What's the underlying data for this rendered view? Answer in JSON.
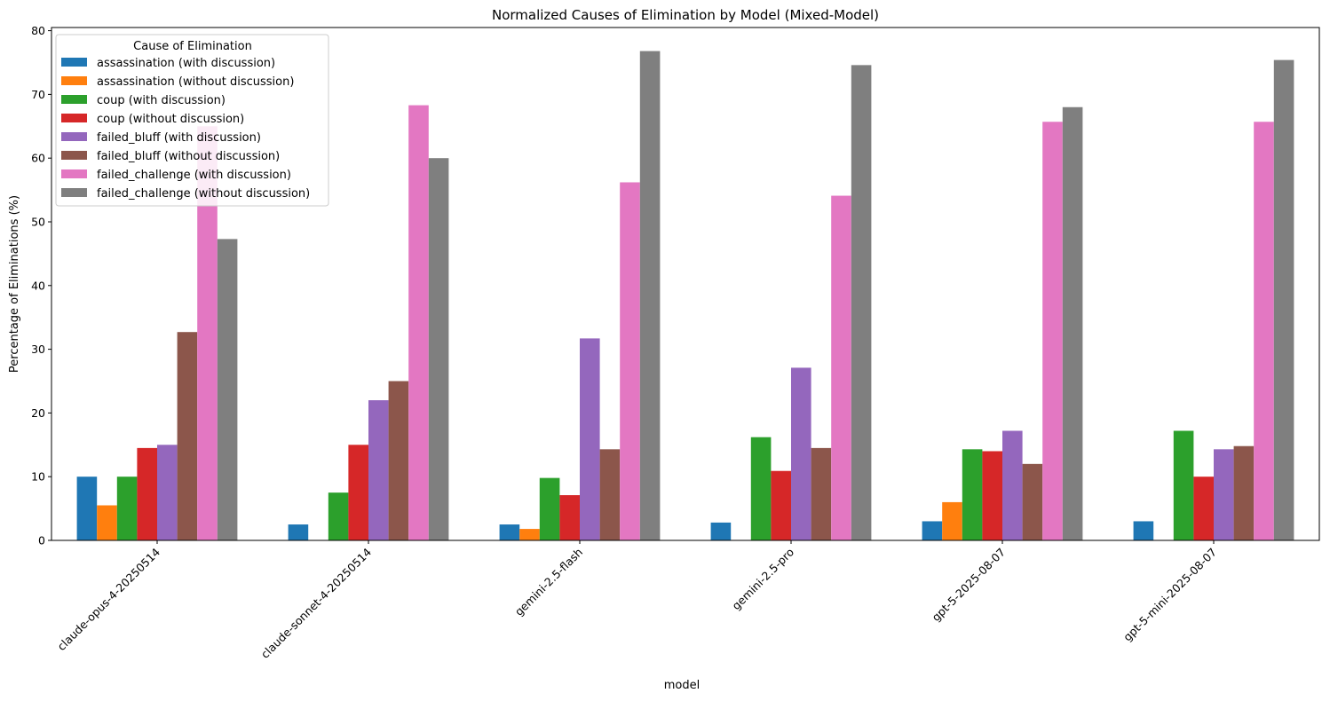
{
  "chart_data": {
    "type": "bar",
    "title": "Normalized Causes of Elimination by Model (Mixed-Model)",
    "xlabel": "model",
    "ylabel": "Percentage of Eliminations (%)",
    "ylim": [
      0,
      80.5
    ],
    "yticks": [
      0,
      10,
      20,
      30,
      40,
      50,
      60,
      70,
      80
    ],
    "grid": false,
    "legend": {
      "title": "Cause of Elimination",
      "placement": "upper-left"
    },
    "categories": [
      "claude-opus-4-20250514",
      "claude-sonnet-4-20250514",
      "gemini-2.5-flash",
      "gemini-2.5-pro",
      "gpt-5-2025-08-07",
      "gpt-5-mini-2025-08-07"
    ],
    "series": [
      {
        "name": "assassination (with discussion)",
        "color": "#1f77b4",
        "values": [
          10.0,
          2.5,
          2.5,
          2.8,
          3.0,
          3.0
        ]
      },
      {
        "name": "assassination (without discussion)",
        "color": "#ff7f0e",
        "values": [
          5.5,
          0,
          1.8,
          0,
          6.0,
          0
        ]
      },
      {
        "name": "coup (with discussion)",
        "color": "#2ca02c",
        "values": [
          10.0,
          7.5,
          9.8,
          16.2,
          14.3,
          17.2
        ]
      },
      {
        "name": "coup (without discussion)",
        "color": "#d62728",
        "values": [
          14.5,
          15.0,
          7.1,
          10.9,
          14.0,
          10.0
        ]
      },
      {
        "name": "failed_bluff (with discussion)",
        "color": "#9467bd",
        "values": [
          15.0,
          22.0,
          31.7,
          27.1,
          17.2,
          14.3
        ]
      },
      {
        "name": "failed_bluff (without discussion)",
        "color": "#8c564b",
        "values": [
          32.7,
          25.0,
          14.3,
          14.5,
          12.0,
          14.8
        ]
      },
      {
        "name": "failed_challenge (with discussion)",
        "color": "#e377c2",
        "values": [
          65.0,
          68.3,
          56.2,
          54.1,
          65.7,
          65.7
        ]
      },
      {
        "name": "failed_challenge (without discussion)",
        "color": "#7f7f7f",
        "values": [
          47.3,
          60.0,
          76.8,
          74.6,
          68.0,
          75.4
        ]
      }
    ]
  }
}
